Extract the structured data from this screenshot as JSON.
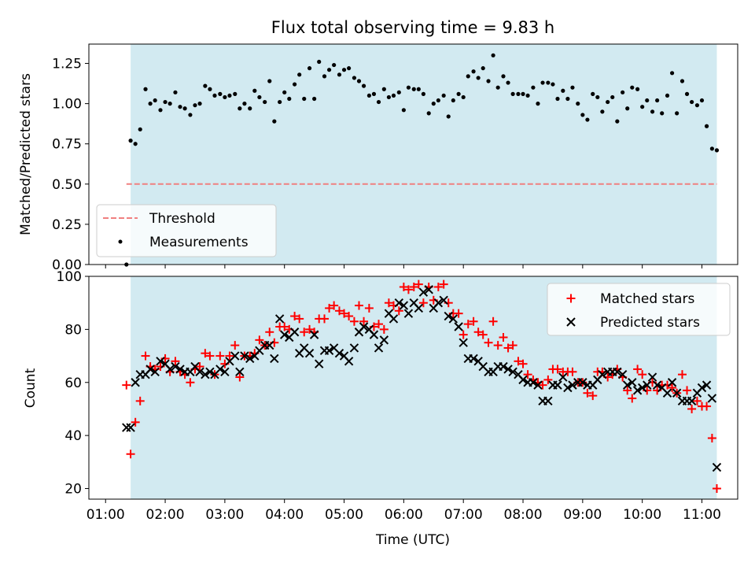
{
  "colors": {
    "shade": "#add8e6",
    "threshold": "#f08080",
    "measurements": "#000000",
    "matched": "#ff0000",
    "predicted": "#000000"
  },
  "chart_data": [
    {
      "type": "scatter",
      "title": "Flux total observing time = 9.83 h",
      "xlabel": "",
      "ylabel": "Matched/Predicted stars",
      "ylim": [
        0,
        1.37
      ],
      "yticks": [
        "0.00",
        "0.25",
        "0.50",
        "0.75",
        "1.00",
        "1.25"
      ],
      "ytick_values": [
        0,
        0.25,
        0.5,
        0.75,
        1.0,
        1.25
      ],
      "xlim_hours": [
        0.72,
        11.6
      ],
      "shaded_span_hours": [
        1.42,
        11.25
      ],
      "grid": false,
      "legend_position": "lower-left",
      "threshold": {
        "name": "Threshold",
        "value": 0.5,
        "x_hours": [
          1.35,
          11.25
        ]
      },
      "series": [
        {
          "name": "Measurements",
          "x_hours": [
            1.35,
            1.42,
            1.5,
            1.58,
            1.67,
            1.75,
            1.83,
            1.92,
            2.0,
            2.08,
            2.17,
            2.25,
            2.33,
            2.42,
            2.5,
            2.58,
            2.67,
            2.75,
            2.83,
            2.92,
            3.0,
            3.08,
            3.17,
            3.25,
            3.33,
            3.42,
            3.5,
            3.58,
            3.67,
            3.75,
            3.83,
            3.92,
            4.0,
            4.08,
            4.17,
            4.25,
            4.33,
            4.42,
            4.5,
            4.58,
            4.67,
            4.75,
            4.83,
            4.92,
            5.0,
            5.08,
            5.17,
            5.25,
            5.33,
            5.42,
            5.5,
            5.58,
            5.67,
            5.75,
            5.83,
            5.92,
            6.0,
            6.08,
            6.17,
            6.25,
            6.33,
            6.42,
            6.5,
            6.58,
            6.67,
            6.75,
            6.83,
            6.92,
            7.0,
            7.08,
            7.17,
            7.25,
            7.33,
            7.42,
            7.5,
            7.58,
            7.67,
            7.75,
            7.83,
            7.92,
            8.0,
            8.08,
            8.17,
            8.25,
            8.33,
            8.42,
            8.5,
            8.58,
            8.67,
            8.75,
            8.83,
            8.92,
            9.0,
            9.08,
            9.17,
            9.25,
            9.33,
            9.42,
            9.5,
            9.58,
            9.67,
            9.75,
            9.83,
            9.92,
            10.0,
            10.08,
            10.17,
            10.25,
            10.33,
            10.42,
            10.5,
            10.58,
            10.67,
            10.75,
            10.83,
            10.92,
            11.0,
            11.08,
            11.17,
            11.25
          ],
          "values": [
            0.0,
            0.77,
            0.75,
            0.84,
            1.09,
            1.0,
            1.02,
            0.96,
            1.01,
            1.0,
            1.07,
            0.98,
            0.97,
            0.93,
            0.99,
            1.0,
            1.11,
            1.09,
            1.05,
            1.06,
            1.04,
            1.05,
            1.06,
            0.97,
            1.0,
            0.97,
            1.08,
            1.04,
            1.01,
            1.14,
            0.89,
            1.01,
            1.07,
            1.03,
            1.12,
            1.18,
            1.03,
            1.22,
            1.03,
            1.26,
            1.17,
            1.21,
            1.24,
            1.18,
            1.21,
            1.22,
            1.16,
            1.14,
            1.11,
            1.05,
            1.06,
            1.01,
            1.09,
            1.04,
            1.05,
            1.07,
            0.96,
            1.1,
            1.09,
            1.09,
            1.06,
            0.94,
            1.0,
            1.02,
            1.05,
            0.92,
            1.02,
            1.06,
            1.04,
            1.17,
            1.2,
            1.16,
            1.22,
            1.14,
            1.3,
            1.1,
            1.17,
            1.13,
            1.06,
            1.06,
            1.06,
            1.05,
            1.1,
            1.0,
            1.13,
            1.13,
            1.12,
            1.03,
            1.08,
            1.03,
            1.1,
            1.0,
            0.93,
            0.9,
            1.06,
            1.04,
            0.95,
            1.01,
            1.04,
            0.89,
            1.07,
            0.97,
            1.1,
            1.09,
            0.98,
            1.02,
            0.95,
            1.02,
            0.94,
            1.05,
            1.19,
            0.94,
            1.14,
            1.06,
            1.01,
            0.99,
            1.02,
            0.86,
            0.72,
            0.71
          ]
        }
      ]
    },
    {
      "type": "scatter",
      "title": "",
      "xlabel": "Time (UTC)",
      "ylabel": "Count",
      "ylim": [
        16,
        100
      ],
      "yticks": [
        "20",
        "40",
        "60",
        "80",
        "100"
      ],
      "ytick_values": [
        20,
        40,
        60,
        80,
        100
      ],
      "xticks": [
        "01:00",
        "02:00",
        "03:00",
        "04:00",
        "05:00",
        "06:00",
        "07:00",
        "08:00",
        "09:00",
        "10:00",
        "11:00"
      ],
      "xtick_hours": [
        1,
        2,
        3,
        4,
        5,
        6,
        7,
        8,
        9,
        10,
        11
      ],
      "xlim_hours": [
        0.72,
        11.6
      ],
      "shaded_span_hours": [
        1.42,
        11.25
      ],
      "grid": false,
      "legend_position": "upper-right",
      "series": [
        {
          "name": "Matched stars",
          "marker": "plus",
          "x_hours": [
            1.35,
            1.42,
            1.5,
            1.58,
            1.67,
            1.75,
            1.83,
            1.92,
            2.0,
            2.08,
            2.17,
            2.25,
            2.33,
            2.42,
            2.5,
            2.58,
            2.67,
            2.75,
            2.83,
            2.92,
            3.0,
            3.08,
            3.17,
            3.25,
            3.33,
            3.42,
            3.5,
            3.58,
            3.67,
            3.75,
            3.83,
            3.92,
            4.0,
            4.08,
            4.17,
            4.25,
            4.33,
            4.42,
            4.5,
            4.58,
            4.67,
            4.75,
            4.83,
            4.92,
            5.0,
            5.08,
            5.17,
            5.25,
            5.33,
            5.42,
            5.5,
            5.58,
            5.67,
            5.75,
            5.83,
            5.92,
            6.0,
            6.08,
            6.17,
            6.25,
            6.33,
            6.42,
            6.5,
            6.58,
            6.67,
            6.75,
            6.83,
            6.92,
            7.0,
            7.08,
            7.17,
            7.25,
            7.33,
            7.42,
            7.5,
            7.58,
            7.67,
            7.75,
            7.83,
            7.92,
            8.0,
            8.08,
            8.17,
            8.25,
            8.33,
            8.42,
            8.5,
            8.58,
            8.67,
            8.75,
            8.83,
            8.92,
            9.0,
            9.08,
            9.17,
            9.25,
            9.33,
            9.42,
            9.5,
            9.58,
            9.67,
            9.75,
            9.83,
            9.92,
            10.0,
            10.08,
            10.17,
            10.25,
            10.33,
            10.42,
            10.5,
            10.58,
            10.67,
            10.75,
            10.83,
            10.92,
            11.0,
            11.08,
            11.17,
            11.25
          ],
          "values": [
            59,
            33,
            45,
            53,
            70,
            66,
            65,
            66,
            69,
            64,
            68,
            64,
            63,
            60,
            65,
            66,
            71,
            70,
            63,
            70,
            67,
            70,
            74,
            62,
            70,
            70,
            71,
            76,
            74,
            79,
            75,
            81,
            81,
            80,
            85,
            84,
            79,
            80,
            79,
            84,
            84,
            88,
            89,
            87,
            86,
            85,
            83,
            89,
            83,
            88,
            81,
            82,
            80,
            90,
            89,
            87,
            96,
            95,
            96,
            97,
            90,
            96,
            91,
            96,
            97,
            90,
            86,
            86,
            78,
            82,
            83,
            79,
            78,
            75,
            83,
            74,
            77,
            73,
            74,
            68,
            67,
            63,
            61,
            60,
            59,
            61,
            65,
            65,
            64,
            64,
            64,
            60,
            60,
            56,
            55,
            64,
            64,
            62,
            63,
            65,
            62,
            57,
            54,
            65,
            63,
            57,
            60,
            57,
            59,
            59,
            58,
            56,
            63,
            57,
            50,
            53,
            51,
            51,
            39,
            20
          ]
        },
        {
          "name": "Predicted stars",
          "marker": "x",
          "x_hours": [
            1.35,
            1.42,
            1.5,
            1.58,
            1.67,
            1.75,
            1.83,
            1.92,
            2.0,
            2.08,
            2.17,
            2.25,
            2.33,
            2.42,
            2.5,
            2.58,
            2.67,
            2.75,
            2.83,
            2.92,
            3.0,
            3.08,
            3.17,
            3.25,
            3.33,
            3.42,
            3.5,
            3.58,
            3.67,
            3.75,
            3.83,
            3.92,
            4.0,
            4.08,
            4.17,
            4.25,
            4.33,
            4.42,
            4.5,
            4.58,
            4.67,
            4.75,
            4.83,
            4.92,
            5.0,
            5.08,
            5.17,
            5.25,
            5.33,
            5.42,
            5.5,
            5.58,
            5.67,
            5.75,
            5.83,
            5.92,
            6.0,
            6.08,
            6.17,
            6.25,
            6.33,
            6.42,
            6.5,
            6.58,
            6.67,
            6.75,
            6.83,
            6.92,
            7.0,
            7.08,
            7.17,
            7.25,
            7.33,
            7.42,
            7.5,
            7.58,
            7.67,
            7.75,
            7.83,
            7.92,
            8.0,
            8.08,
            8.17,
            8.25,
            8.33,
            8.42,
            8.5,
            8.58,
            8.67,
            8.75,
            8.83,
            8.92,
            9.0,
            9.08,
            9.17,
            9.25,
            9.33,
            9.42,
            9.5,
            9.58,
            9.67,
            9.75,
            9.83,
            9.92,
            10.0,
            10.08,
            10.17,
            10.25,
            10.33,
            10.42,
            10.5,
            10.58,
            10.67,
            10.75,
            10.83,
            10.92,
            11.0,
            11.08,
            11.17,
            11.25
          ],
          "values": [
            43,
            43,
            60,
            63,
            63,
            65,
            64,
            68,
            67,
            65,
            66,
            65,
            64,
            64,
            66,
            64,
            63,
            64,
            63,
            65,
            64,
            68,
            70,
            64,
            70,
            69,
            70,
            72,
            74,
            74,
            69,
            84,
            78,
            77,
            79,
            71,
            73,
            71,
            78,
            67,
            72,
            72,
            73,
            71,
            70,
            68,
            73,
            79,
            81,
            80,
            78,
            73,
            76,
            86,
            84,
            90,
            89,
            86,
            90,
            88,
            94,
            95,
            88,
            90,
            91,
            85,
            84,
            81,
            75,
            69,
            69,
            68,
            66,
            64,
            64,
            66,
            66,
            65,
            64,
            63,
            61,
            60,
            60,
            59,
            53,
            53,
            59,
            59,
            62,
            58,
            59,
            60,
            60,
            59,
            59,
            61,
            63,
            64,
            64,
            64,
            63,
            59,
            60,
            57,
            58,
            59,
            62,
            59,
            58,
            56,
            60,
            56,
            53,
            53,
            53,
            56,
            58,
            59,
            54,
            28
          ]
        }
      ]
    }
  ]
}
